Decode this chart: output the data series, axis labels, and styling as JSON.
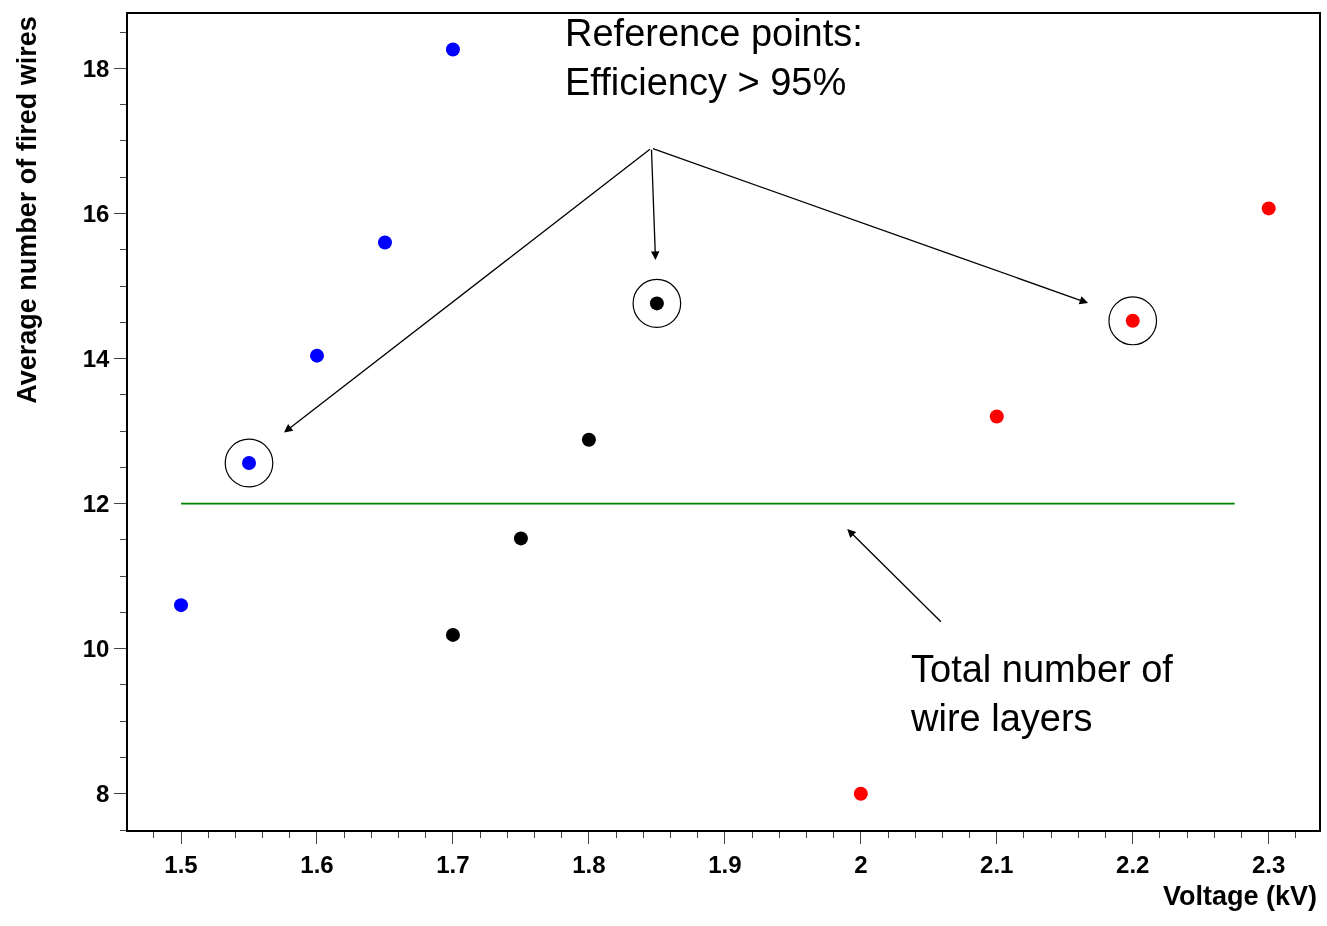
{
  "chart_data": {
    "type": "scatter",
    "xlabel": "Voltage (kV)",
    "ylabel": "Average number of fired wires",
    "series": [
      {
        "color": "#0000ff",
        "marker": "circle",
        "x": [
          1.5,
          1.55,
          1.6,
          1.65,
          1.7
        ],
        "values": [
          10.6,
          12.56,
          14.04,
          15.6,
          18.26
        ]
      },
      {
        "color": "#000000",
        "marker": "circle",
        "x": [
          1.7,
          1.75,
          1.8,
          1.85
        ],
        "values": [
          10.19,
          11.52,
          12.88,
          14.76
        ]
      },
      {
        "color": "#ff0000",
        "marker": "circle",
        "x": [
          2.0,
          2.1,
          2.2,
          2.3
        ],
        "values": [
          8.0,
          13.2,
          14.52,
          16.07
        ]
      },
      {
        "type": "line",
        "color": "#008000",
        "x": [
          1.5,
          2.275
        ],
        "values": [
          12,
          12
        ]
      }
    ],
    "xlim": [
      1.461,
      2.337
    ],
    "xticks": [
      1.5,
      1.6,
      1.7,
      1.8,
      1.9,
      2,
      2.1,
      2.2,
      2.3
    ],
    "ylim": [
      7.5,
      18.75
    ],
    "yticks": [
      8,
      10,
      12,
      14,
      16,
      18
    ],
    "annotations": [
      "Reference points:\nEfficiency > 95%",
      "Total number of\nwire layers"
    ]
  }
}
